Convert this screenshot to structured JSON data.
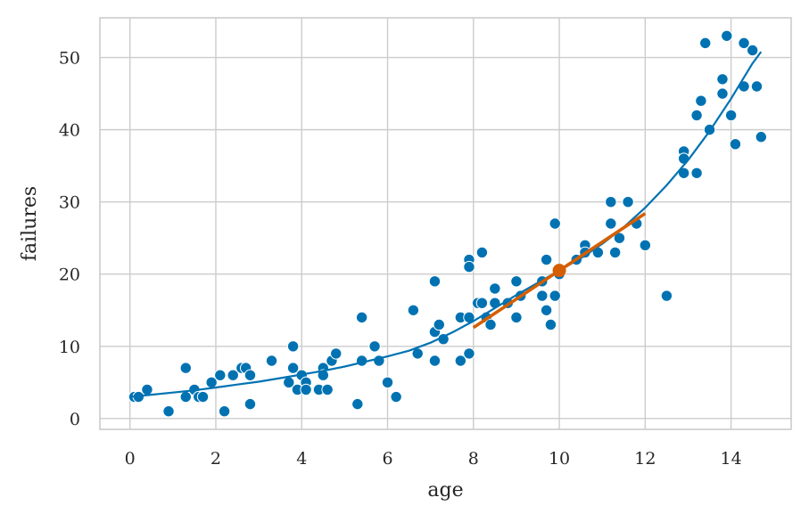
{
  "chart_data": {
    "type": "scatter",
    "title": "",
    "xlabel": "age",
    "ylabel": "failures",
    "xlim": [
      -0.7,
      15.4
    ],
    "ylim": [
      -1.5,
      55.5
    ],
    "xticks": [
      0,
      2,
      4,
      6,
      8,
      10,
      12,
      14
    ],
    "yticks": [
      0,
      10,
      20,
      30,
      40,
      50
    ],
    "grid": true,
    "legend": "none",
    "colors": {
      "scatter": "#0072b2",
      "fit": "#0072b2",
      "tangent": "#d55e00",
      "grid": "#cccccc"
    },
    "series": [
      {
        "kind": "points",
        "color": "#0072b2",
        "x": [
          0.1,
          0.2,
          0.4,
          0.9,
          1.3,
          1.3,
          1.5,
          1.6,
          1.7,
          1.9,
          2.1,
          2.2,
          2.4,
          2.6,
          2.7,
          2.8,
          2.8,
          3.3,
          3.7,
          3.8,
          3.8,
          3.9,
          4.0,
          4.1,
          4.1,
          4.4,
          4.5,
          4.5,
          4.6,
          4.7,
          4.8,
          5.3,
          5.4,
          5.4,
          5.7,
          5.8,
          6.0,
          6.2,
          6.6,
          6.7,
          7.1,
          7.1,
          7.1,
          7.2,
          7.3,
          7.7,
          7.7,
          7.9,
          7.9,
          7.9,
          7.9,
          8.1,
          8.2,
          8.2,
          8.3,
          8.4,
          8.5,
          8.5,
          8.8,
          9.0,
          9.0,
          9.1,
          9.6,
          9.6,
          9.7,
          9.7,
          9.8,
          9.9,
          9.9,
          10.0,
          10.4,
          10.6,
          10.6,
          10.9,
          11.2,
          11.2,
          11.3,
          11.4,
          11.6,
          11.8,
          12.0,
          12.5,
          12.9,
          12.9,
          12.9,
          13.2,
          13.2,
          13.3,
          13.4,
          13.5,
          13.8,
          13.8,
          13.9,
          14.0,
          14.1,
          14.3,
          14.3,
          14.5,
          14.6,
          14.7
        ],
        "y": [
          3,
          3,
          4,
          1,
          7,
          3,
          4,
          3,
          3,
          5,
          6,
          1,
          6,
          7,
          7,
          6,
          2,
          8,
          5,
          7,
          10,
          4,
          6,
          5,
          4,
          4,
          7,
          6,
          4,
          8,
          9,
          2,
          14,
          8,
          10,
          8,
          5,
          3,
          15,
          9,
          19,
          12,
          8,
          13,
          11,
          14,
          8,
          22,
          21,
          14,
          9,
          16,
          23,
          16,
          14,
          13,
          18,
          16,
          16,
          19,
          14,
          17,
          19,
          17,
          22,
          15,
          13,
          27,
          17,
          20,
          22,
          24,
          23,
          23,
          30,
          27,
          23,
          25,
          30,
          27,
          24,
          17,
          37,
          36,
          34,
          42,
          34,
          44,
          52,
          40,
          47,
          45,
          53,
          42,
          38,
          52,
          46,
          51,
          46,
          39
        ]
      },
      {
        "kind": "curve",
        "color": "#0072b2",
        "x": [
          0.0,
          0.5,
          1.0,
          1.5,
          2.0,
          2.5,
          3.0,
          3.5,
          4.0,
          4.5,
          5.0,
          5.5,
          6.0,
          6.5,
          7.0,
          7.5,
          8.0,
          8.5,
          9.0,
          9.5,
          10.0,
          10.5,
          11.0,
          11.5,
          12.0,
          12.5,
          13.0,
          13.5,
          14.0,
          14.5,
          14.7
        ],
        "y": [
          3.0,
          3.3,
          3.6,
          3.9,
          4.3,
          4.7,
          5.1,
          5.6,
          6.1,
          6.6,
          7.2,
          7.9,
          8.6,
          9.4,
          10.5,
          11.9,
          13.5,
          15.3,
          17.1,
          18.8,
          20.5,
          22.2,
          24.2,
          26.5,
          29.2,
          32.3,
          35.8,
          39.8,
          44.3,
          49.2,
          50.8
        ]
      },
      {
        "kind": "tangent",
        "color": "#d55e00",
        "x": [
          8.0,
          12.0
        ],
        "y": [
          12.6,
          28.4
        ]
      },
      {
        "kind": "highlight-point",
        "color": "#d55e00",
        "x": [
          10.0
        ],
        "y": [
          20.5
        ]
      }
    ]
  }
}
